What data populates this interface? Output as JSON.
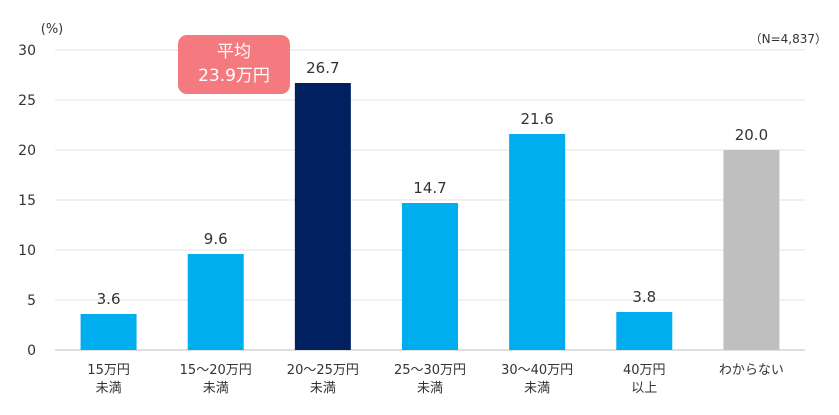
{
  "chart_data": {
    "type": "bar",
    "unit_label": "(%)",
    "sample_note": "（N=4,837）",
    "ylim": [
      0,
      30
    ],
    "yticks": [
      "0",
      "5",
      "10",
      "15",
      "20",
      "25",
      "30"
    ],
    "grid": true,
    "categories": [
      [
        "15万円",
        "未満"
      ],
      [
        "15～20万円",
        "未満"
      ],
      [
        "20～25万円",
        "未満"
      ],
      [
        "25～30万円",
        "未満"
      ],
      [
        "30～40万円",
        "未満"
      ],
      [
        "40万円",
        "以上"
      ],
      [
        "わからない"
      ]
    ],
    "values": [
      3.6,
      9.6,
      26.7,
      14.7,
      21.6,
      3.8,
      20.0
    ],
    "value_labels": [
      "3.6",
      "9.6",
      "26.7",
      "14.7",
      "21.6",
      "3.8",
      "20.0"
    ],
    "bar_colors": [
      "#00aeef",
      "#00aeef",
      "#002060",
      "#00aeef",
      "#00aeef",
      "#00aeef",
      "#bfbfbf"
    ],
    "average_badge": {
      "line1": "平均",
      "line2": "23.9万円",
      "color": "#f47a7f"
    }
  }
}
